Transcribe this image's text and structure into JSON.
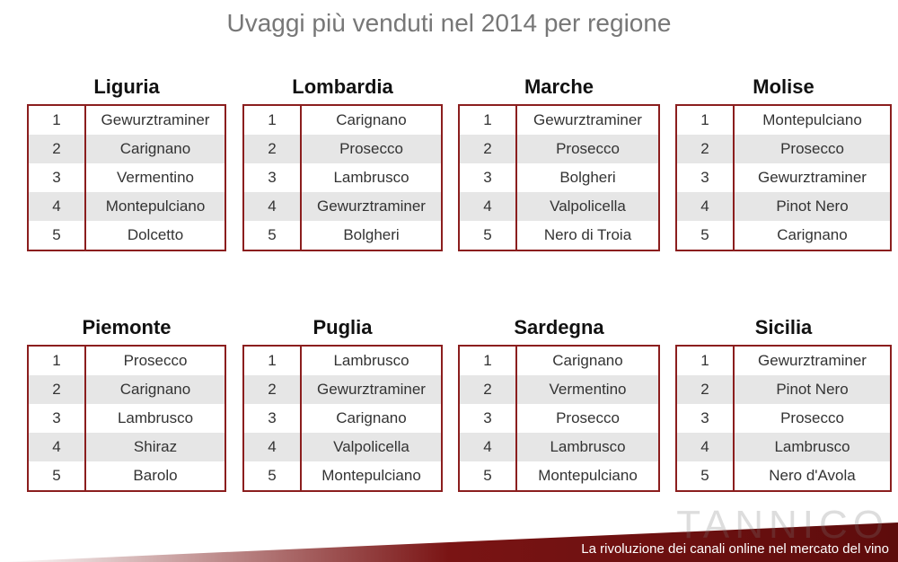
{
  "title": "Uvaggi più venduti nel 2014 per regione",
  "regions": [
    {
      "name": "Liguria",
      "rows": [
        {
          "rank": 1,
          "wine": "Gewurztraminer"
        },
        {
          "rank": 2,
          "wine": "Carignano"
        },
        {
          "rank": 3,
          "wine": "Vermentino"
        },
        {
          "rank": 4,
          "wine": "Montepulciano"
        },
        {
          "rank": 5,
          "wine": "Dolcetto"
        }
      ]
    },
    {
      "name": "Lombardia",
      "rows": [
        {
          "rank": 1,
          "wine": "Carignano"
        },
        {
          "rank": 2,
          "wine": "Prosecco"
        },
        {
          "rank": 3,
          "wine": "Lambrusco"
        },
        {
          "rank": 4,
          "wine": "Gewurztraminer"
        },
        {
          "rank": 5,
          "wine": "Bolgheri"
        }
      ]
    },
    {
      "name": "Marche",
      "rows": [
        {
          "rank": 1,
          "wine": "Gewurztraminer"
        },
        {
          "rank": 2,
          "wine": "Prosecco"
        },
        {
          "rank": 3,
          "wine": "Bolgheri"
        },
        {
          "rank": 4,
          "wine": "Valpolicella"
        },
        {
          "rank": 5,
          "wine": "Nero di Troia"
        }
      ]
    },
    {
      "name": "Molise",
      "rows": [
        {
          "rank": 1,
          "wine": "Montepulciano"
        },
        {
          "rank": 2,
          "wine": "Prosecco"
        },
        {
          "rank": 3,
          "wine": "Gewurztraminer"
        },
        {
          "rank": 4,
          "wine": "Pinot Nero"
        },
        {
          "rank": 5,
          "wine": "Carignano"
        }
      ]
    },
    {
      "name": "Piemonte",
      "rows": [
        {
          "rank": 1,
          "wine": "Prosecco"
        },
        {
          "rank": 2,
          "wine": "Carignano"
        },
        {
          "rank": 3,
          "wine": "Lambrusco"
        },
        {
          "rank": 4,
          "wine": "Shiraz"
        },
        {
          "rank": 5,
          "wine": "Barolo"
        }
      ]
    },
    {
      "name": "Puglia",
      "rows": [
        {
          "rank": 1,
          "wine": "Lambrusco"
        },
        {
          "rank": 2,
          "wine": "Gewurztraminer"
        },
        {
          "rank": 3,
          "wine": "Carignano"
        },
        {
          "rank": 4,
          "wine": "Valpolicella"
        },
        {
          "rank": 5,
          "wine": "Montepulciano"
        }
      ]
    },
    {
      "name": "Sardegna",
      "rows": [
        {
          "rank": 1,
          "wine": "Carignano"
        },
        {
          "rank": 2,
          "wine": "Vermentino"
        },
        {
          "rank": 3,
          "wine": "Prosecco"
        },
        {
          "rank": 4,
          "wine": "Lambrusco"
        },
        {
          "rank": 5,
          "wine": "Montepulciano"
        }
      ]
    },
    {
      "name": "Sicilia",
      "rows": [
        {
          "rank": 1,
          "wine": "Gewurztraminer"
        },
        {
          "rank": 2,
          "wine": "Pinot Nero"
        },
        {
          "rank": 3,
          "wine": "Prosecco"
        },
        {
          "rank": 4,
          "wine": "Lambrusco"
        },
        {
          "rank": 5,
          "wine": "Nero d'Avola"
        }
      ]
    }
  ],
  "logo": "TANNICO",
  "footer": "La rivoluzione dei canali online nel mercato del vino"
}
